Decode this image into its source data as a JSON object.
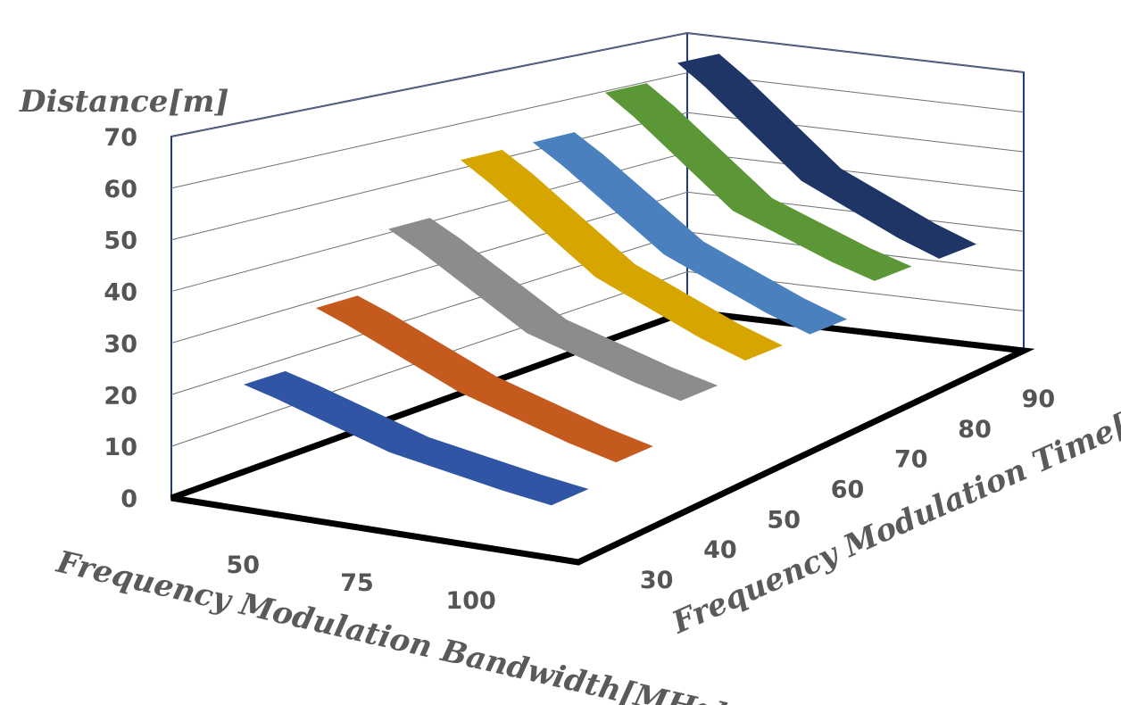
{
  "chart_data": {
    "type": "3d-ribbon",
    "z_axis_title": "Distance[m]",
    "x_axis_title": "Frequency Modulation Bandwidth[MHz]",
    "depth_axis_title": "Frequency Modulation Time[µs]",
    "bandwidth_categories": [
      "50",
      "75",
      "100"
    ],
    "z_ticks": [
      "0",
      "10",
      "20",
      "30",
      "40",
      "50",
      "60",
      "70"
    ],
    "zlim": [
      0,
      70
    ],
    "series": [
      {
        "name": "30",
        "color": "#2f55a4",
        "values": [
          21,
          14,
          10
        ]
      },
      {
        "name": "40",
        "color": "#c55a1f",
        "values": [
          31,
          21,
          14
        ]
      },
      {
        "name": "50",
        "color": "#8c8c8c",
        "values": [
          42,
          28,
          21
        ]
      },
      {
        "name": "60",
        "color": "#d7a500",
        "values": [
          52,
          35,
          25
        ]
      },
      {
        "name": "70",
        "color": "#4a80bd",
        "values": [
          52,
          35,
          25
        ]
      },
      {
        "name": "80",
        "color": "#5b9736",
        "values": [
          59,
          40,
          31
        ]
      },
      {
        "name": "90",
        "color": "#1f3566",
        "values": [
          62,
          42,
          31
        ]
      }
    ]
  }
}
